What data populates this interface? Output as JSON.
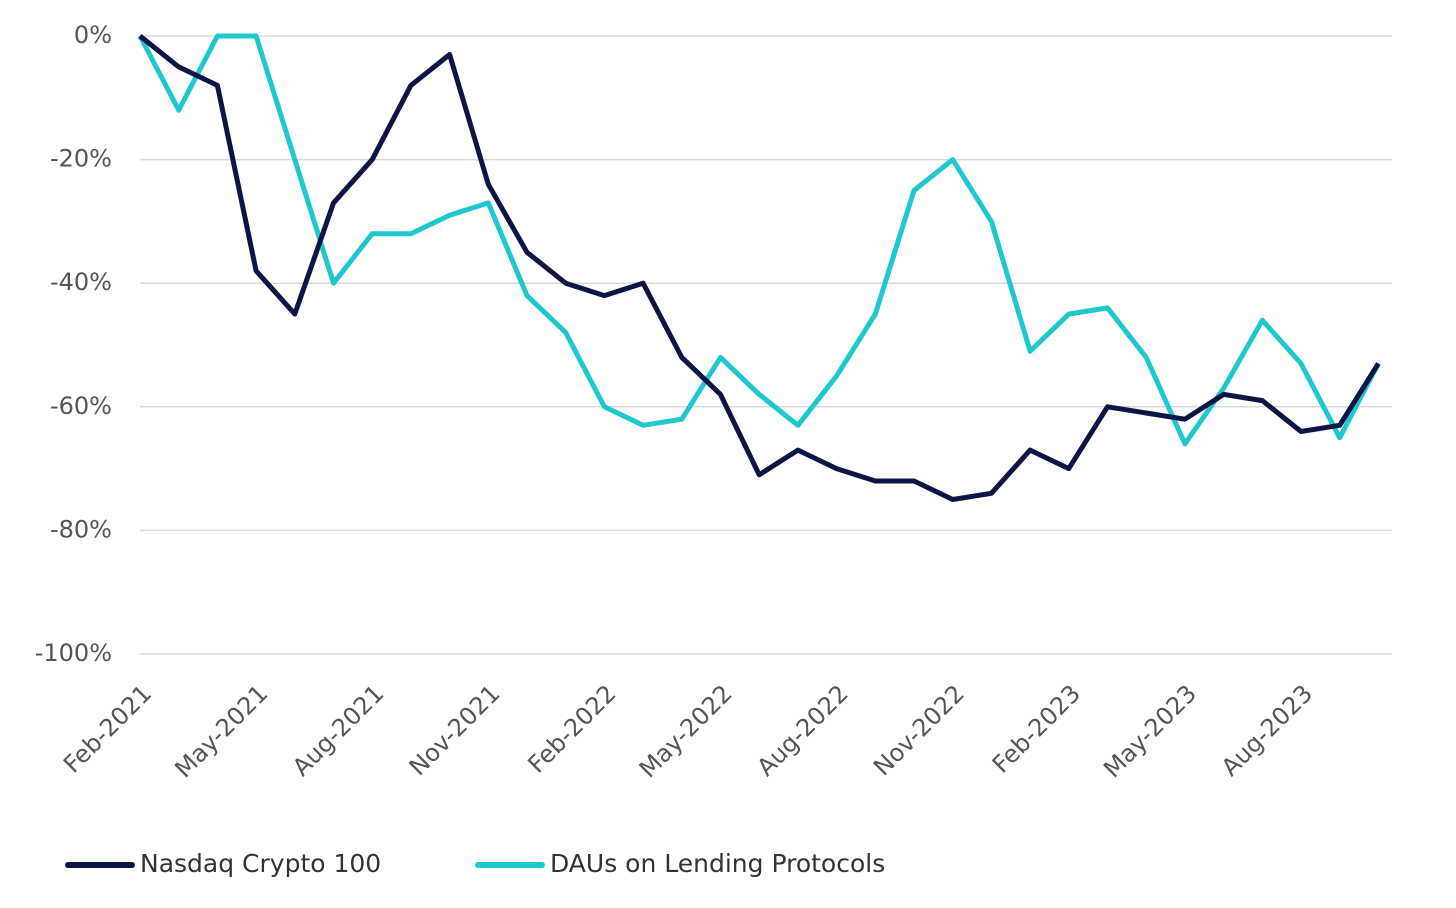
{
  "chart_data": {
    "type": "line",
    "x": [
      "Feb-2021",
      "Mar-2021",
      "Apr-2021",
      "May-2021",
      "Jun-2021",
      "Jul-2021",
      "Aug-2021",
      "Sep-2021",
      "Oct-2021",
      "Nov-2021",
      "Dec-2021",
      "Jan-2022",
      "Feb-2022",
      "Mar-2022",
      "Apr-2022",
      "May-2022",
      "Jun-2022",
      "Jul-2022",
      "Aug-2022",
      "Sep-2022",
      "Oct-2022",
      "Nov-2022",
      "Dec-2022",
      "Jan-2023",
      "Feb-2023",
      "Mar-2023",
      "Apr-2023",
      "May-2023",
      "Jun-2023",
      "Jul-2023",
      "Aug-2023",
      "Sep-2023",
      "Oct-2023"
    ],
    "xticks": [
      "Feb-2021",
      "May-2021",
      "Aug-2021",
      "Nov-2021",
      "Feb-2022",
      "May-2022",
      "Aug-2022",
      "Nov-2022",
      "Feb-2023",
      "May-2023",
      "Aug-2023"
    ],
    "series": [
      {
        "name": "Nasdaq Crypto 100",
        "color": "#0d1545",
        "values": [
          0,
          -5,
          -8,
          -38,
          -45,
          -27,
          -20,
          -8,
          -3,
          -24,
          -35,
          -40,
          -42,
          -40,
          -52,
          -58,
          -71,
          -67,
          -70,
          -72,
          -72,
          -75,
          -74,
          -67,
          -70,
          -60,
          -61,
          -62,
          -58,
          -59,
          -64,
          -63,
          -53
        ]
      },
      {
        "name": "DAUs on Lending Protocols",
        "color": "#1fc8cc",
        "values": [
          0,
          -12,
          0,
          0,
          -20,
          -40,
          -32,
          -32,
          -29,
          -27,
          -42,
          -48,
          -60,
          -63,
          -62,
          -52,
          -58,
          -63,
          -55,
          -45,
          -25,
          -20,
          -30,
          -51,
          -45,
          -44,
          -52,
          -66,
          -57,
          -46,
          -53,
          -65,
          -53
        ]
      }
    ],
    "ylim": [
      -100,
      0
    ],
    "yticks": [
      {
        "value": -100,
        "label": "-100%"
      },
      {
        "value": -80,
        "label": "-80%"
      },
      {
        "value": -60,
        "label": "-60%"
      },
      {
        "value": -40,
        "label": "-40%"
      },
      {
        "value": -20,
        "label": "-20%"
      },
      {
        "value": 0,
        "label": "0%"
      }
    ],
    "grid": true
  }
}
